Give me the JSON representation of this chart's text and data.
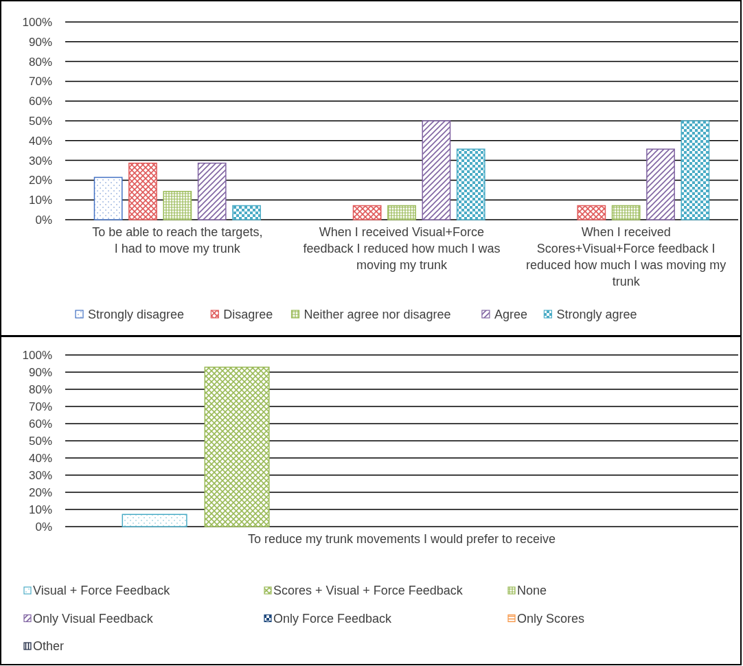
{
  "chart_data": [
    {
      "type": "bar",
      "categories": [
        "To be able to reach the targets, I had to move my trunk",
        "When I received Visual+Force feedback I reduced how much I was moving my trunk",
        "When I received Scores+Visual+Force feedback I reduced how much I was moving my trunk"
      ],
      "series": [
        {
          "name": "Strongly disagree",
          "color": "#4472c4",
          "values": [
            21.4,
            0,
            0
          ]
        },
        {
          "name": "Disagree",
          "color": "#e05a5a",
          "values": [
            28.6,
            7.1,
            7.1
          ]
        },
        {
          "name": "Neither agree nor disagree",
          "color": "#9bbb59",
          "values": [
            14.3,
            7.1,
            7.1
          ]
        },
        {
          "name": "Agree",
          "color": "#8064a2",
          "values": [
            28.6,
            50,
            35.7
          ]
        },
        {
          "name": "Strongly agree",
          "color": "#4bacc6",
          "values": [
            7.1,
            35.7,
            50
          ]
        }
      ],
      "ylim": [
        0,
        100
      ],
      "yticks": [
        {
          "value": 0,
          "label": "0%"
        },
        {
          "value": 10,
          "label": "10%"
        },
        {
          "value": 20,
          "label": "20%"
        },
        {
          "value": 30,
          "label": "30%"
        },
        {
          "value": 40,
          "label": "40%"
        },
        {
          "value": 50,
          "label": "50%"
        },
        {
          "value": 60,
          "label": "60%"
        },
        {
          "value": 70,
          "label": "70%"
        },
        {
          "value": 80,
          "label": "80%"
        },
        {
          "value": 90,
          "label": "90%"
        },
        {
          "value": 100,
          "label": "100%"
        }
      ],
      "grid": "y",
      "legend": "bottom"
    },
    {
      "type": "bar",
      "categories": [
        "To reduce my trunk movements I would prefer to receive"
      ],
      "series": [
        {
          "name": "Visual + Force Feedback",
          "color": "#4bacc6",
          "values": [
            7.1
          ]
        },
        {
          "name": "Scores + Visual + Force Feedback",
          "color": "#9bbb59",
          "values": [
            92.9
          ]
        },
        {
          "name": "None",
          "color": "#9bbb59",
          "values": [
            0
          ]
        },
        {
          "name": "Only Visual Feedback",
          "color": "#8064a2",
          "values": [
            0
          ]
        },
        {
          "name": "Only Force Feedback",
          "color": "#1f497d",
          "values": [
            0
          ]
        },
        {
          "name": "Only Scores",
          "color": "#f79646",
          "values": [
            0
          ]
        },
        {
          "name": "Other",
          "color": "#1f2a44",
          "values": [
            0
          ]
        }
      ],
      "ylim": [
        0,
        100
      ],
      "yticks": [
        {
          "value": 0,
          "label": "0%"
        },
        {
          "value": 10,
          "label": "10%"
        },
        {
          "value": 20,
          "label": "20%"
        },
        {
          "value": 30,
          "label": "30%"
        },
        {
          "value": 40,
          "label": "40%"
        },
        {
          "value": 50,
          "label": "50%"
        },
        {
          "value": 60,
          "label": "60%"
        },
        {
          "value": 70,
          "label": "70%"
        },
        {
          "value": 80,
          "label": "80%"
        },
        {
          "value": 90,
          "label": "90%"
        },
        {
          "value": 100,
          "label": "100%"
        }
      ],
      "grid": "y",
      "legend": "bottom"
    }
  ]
}
